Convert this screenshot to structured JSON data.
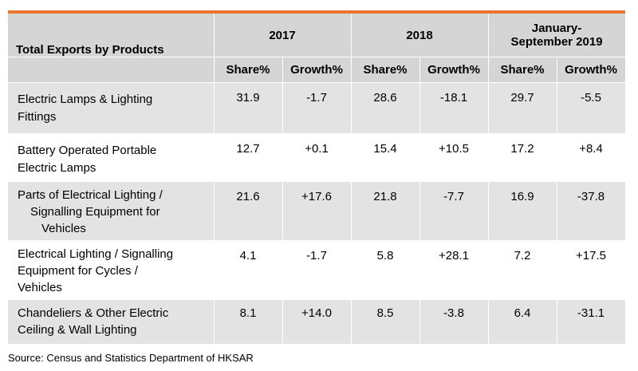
{
  "colors": {
    "accent": "#e8762b",
    "header_bg": "#d5d5d5",
    "row_shade": "#e3e3e3"
  },
  "table": {
    "title": "Total Exports by Products",
    "years": [
      "2017",
      "2018",
      "January-September 2019"
    ],
    "year3_lines": [
      "January-",
      "September 2019"
    ],
    "share_label": "Share%",
    "growth_label": "Growth%",
    "rows": [
      {
        "product_lines": [
          "Electric Lamps & Lighting",
          "Fittings"
        ],
        "values": [
          "31.9",
          "-1.7",
          "28.6",
          "-18.1",
          "29.7",
          "-5.5"
        ]
      },
      {
        "product_lines": [
          "Battery Operated Portable",
          "Electric Lamps"
        ],
        "values": [
          "12.7",
          "+0.1",
          "15.4",
          "+10.5",
          "17.2",
          "+8.4"
        ]
      },
      {
        "product_lines": [
          "Parts of Electrical Lighting /",
          "Signalling Equipment for",
          "Vehicles"
        ],
        "values": [
          "21.6",
          "+17.6",
          "21.8",
          "-7.7",
          "16.9",
          "-37.8"
        ]
      },
      {
        "product_lines": [
          "Electrical Lighting / Signalling",
          "Equipment for Cycles /",
          "Vehicles"
        ],
        "values": [
          "4.1",
          "-1.7",
          "5.8",
          "+28.1",
          "7.2",
          "+17.5"
        ]
      },
      {
        "product_lines": [
          "Chandeliers & Other Electric",
          "Ceiling & Wall Lighting"
        ],
        "values": [
          "8.1",
          "+14.0",
          "8.5",
          "-3.8",
          "6.4",
          "-31.1"
        ]
      }
    ]
  },
  "source": "Source: Census and Statistics Department of HKSAR"
}
